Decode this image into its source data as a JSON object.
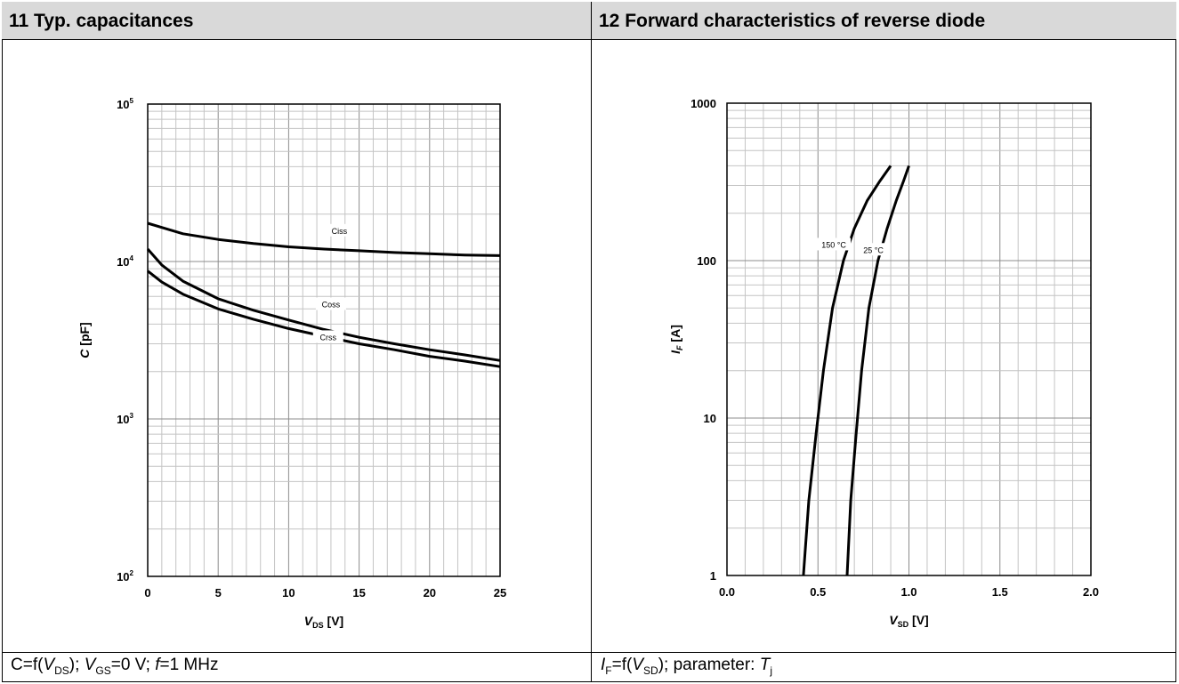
{
  "panels": {
    "left_title": "11 Typ. capacitances",
    "right_title": "12 Forward characteristics of reverse diode",
    "left_footer": {
      "a": "C=f(",
      "b": "V",
      "c": "DS",
      "d": ");  ",
      "e": "V",
      "f": "GS",
      "g": "=0 V; ",
      "h": "f",
      "i": "=1 MHz"
    },
    "right_footer": {
      "a": "I",
      "b": "F",
      "c": "=f(",
      "d": "V",
      "e": "SD",
      "f": "); parameter: ",
      "g": "T",
      "h": "j"
    }
  },
  "chart_data": [
    {
      "type": "line",
      "title": "11 Typ. capacitances",
      "xlabel_main": "V",
      "xlabel_sub": "DS",
      "xlabel_unit": " [V]",
      "ylabel_main": "C",
      "ylabel_unit": " [pF]",
      "xlim": [
        0,
        25
      ],
      "ylim": [
        100,
        100000
      ],
      "yscale": "log",
      "xticks": [
        "0",
        "5",
        "10",
        "15",
        "20",
        "25"
      ],
      "yticks": [
        {
          "base": "10",
          "exp": "2"
        },
        {
          "base": "10",
          "exp": "3"
        },
        {
          "base": "10",
          "exp": "4"
        },
        {
          "base": "10",
          "exp": "5"
        }
      ],
      "grid": true,
      "series": [
        {
          "name": "Ciss",
          "x": [
            0,
            2.5,
            5,
            7.5,
            10,
            12.5,
            15,
            17.5,
            20,
            22.5,
            25
          ],
          "values": [
            17500,
            15000,
            13800,
            13000,
            12400,
            12000,
            11700,
            11400,
            11200,
            11000,
            10900
          ]
        },
        {
          "name": "Coss",
          "x": [
            0,
            1,
            2.5,
            5,
            7.5,
            10,
            12.5,
            15,
            17.5,
            20,
            22.5,
            25
          ],
          "values": [
            12000,
            9500,
            7500,
            5800,
            4900,
            4250,
            3700,
            3300,
            3000,
            2750,
            2550,
            2350
          ]
        },
        {
          "name": "Crss",
          "x": [
            0,
            1,
            2.5,
            5,
            7.5,
            10,
            12.5,
            15,
            17.5,
            20,
            22.5,
            25
          ],
          "values": [
            8700,
            7400,
            6200,
            5000,
            4300,
            3750,
            3350,
            3000,
            2750,
            2500,
            2330,
            2150
          ]
        }
      ]
    },
    {
      "type": "line",
      "title": "12 Forward characteristics of reverse diode",
      "xlabel_main": "V",
      "xlabel_sub": "SD",
      "xlabel_unit": " [V]",
      "ylabel_main": "I",
      "ylabel_sub": "F",
      "ylabel_unit": " [A]",
      "xlim": [
        0,
        2
      ],
      "ylim": [
        1,
        1000
      ],
      "yscale": "log",
      "xticks": [
        "0.0",
        "0.5",
        "1.0",
        "1.5",
        "2.0"
      ],
      "yticks": [
        "1",
        "10",
        "100",
        "1000"
      ],
      "grid": true,
      "series": [
        {
          "name": "150 °C",
          "x": [
            0.42,
            0.45,
            0.49,
            0.53,
            0.58,
            0.64,
            0.7,
            0.77,
            0.84,
            0.9
          ],
          "values": [
            1,
            3,
            8,
            20,
            50,
            100,
            160,
            240,
            320,
            400
          ]
        },
        {
          "name": "25 °C",
          "x": [
            0.66,
            0.68,
            0.71,
            0.74,
            0.78,
            0.83,
            0.88,
            0.93,
            0.97,
            1.0
          ],
          "values": [
            1,
            3,
            8,
            20,
            50,
            100,
            160,
            240,
            320,
            400
          ]
        }
      ]
    }
  ]
}
